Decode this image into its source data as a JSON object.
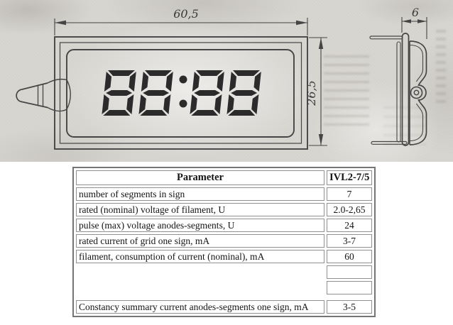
{
  "drawing": {
    "front_view": {
      "dim_width_label": "60,5",
      "dim_height_label": "26,5",
      "display_text": "88:88"
    },
    "side_view": {
      "dim_depth_label": "6"
    }
  },
  "table": {
    "header": {
      "parameter": "Parameter",
      "model": "IVL2-7/5"
    },
    "rows": [
      {
        "parameter": "number of segments in sign",
        "value": "7"
      },
      {
        "parameter": "rated (nominal) voltage of filament, U",
        "value": "2.0-2,65"
      },
      {
        "parameter": "pulse (max) voltage anodes-segments, U",
        "value": "24"
      },
      {
        "parameter": "rated current of grid one sign, mA",
        "value": "3-7"
      },
      {
        "parameter": "filament, consumption of current (nominal), mA",
        "value": "60"
      },
      {
        "parameter": "",
        "value": ""
      },
      {
        "parameter": "",
        "value": ""
      },
      {
        "parameter": "Constancy summary current anodes-segments one sign, mA",
        "value": "3-5"
      }
    ]
  },
  "colors": {
    "paper": "#d8d6d1",
    "line": "#454545",
    "digit": "#2b2b2b",
    "table_border": "#757575"
  }
}
